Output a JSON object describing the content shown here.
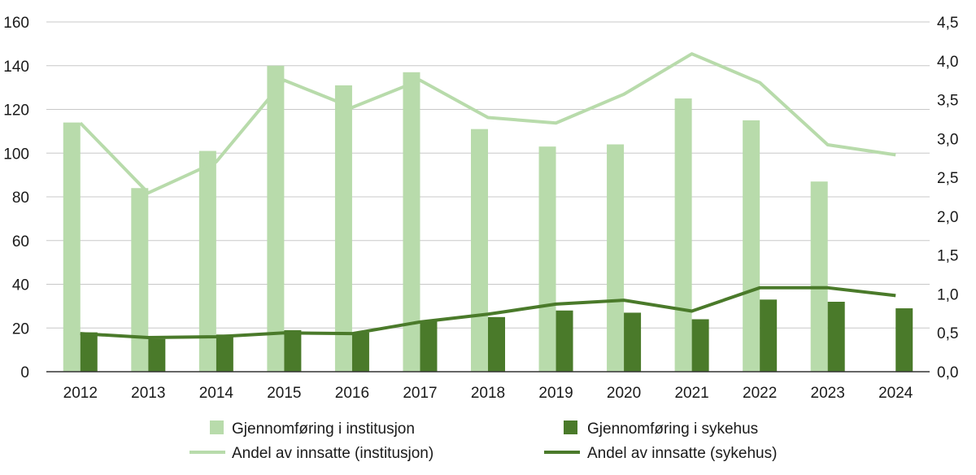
{
  "chart_data": {
    "type": "bar",
    "title": "",
    "xlabel": "",
    "ylabel": "",
    "categories": [
      "2012",
      "2013",
      "2014",
      "2015",
      "2016",
      "2017",
      "2018",
      "2019",
      "2020",
      "2021",
      "2022",
      "2023",
      "2024"
    ],
    "ylim": [
      0,
      160
    ],
    "y2lim": [
      0,
      4.5
    ],
    "yticks": [
      "0",
      "20",
      "40",
      "60",
      "80",
      "100",
      "120",
      "140",
      "160"
    ],
    "y2ticks": [
      "0,0",
      "0,5",
      "1,0",
      "1,5",
      "2,0",
      "2,5",
      "3,0",
      "3,5",
      "4,0",
      "4,5"
    ],
    "grid": true,
    "legend_position": "bottom",
    "colors": {
      "light": "#b8dbab",
      "dark": "#4a7a2a",
      "grid": "#c8c8c8",
      "axis": "#333333"
    },
    "series": [
      {
        "name": "Gjennomføring i institusjon",
        "kind": "bar",
        "axis": "left",
        "values": [
          114,
          84,
          101,
          140,
          131,
          137,
          111,
          103,
          104,
          125,
          115,
          87,
          null
        ]
      },
      {
        "name": "Gjennomføring i sykehus",
        "kind": "bar",
        "axis": "left",
        "values": [
          18,
          15,
          17,
          19,
          18,
          23,
          25,
          28,
          27,
          24,
          33,
          32,
          29
        ]
      },
      {
        "name": "Andel av innsatte (institusjon)",
        "kind": "line",
        "axis": "right",
        "values": [
          3.2,
          2.3,
          2.7,
          3.75,
          3.4,
          3.75,
          3.27,
          3.2,
          3.57,
          4.09,
          3.72,
          2.92,
          2.79
        ]
      },
      {
        "name": "Andel av innsatte (sykehus)",
        "kind": "line",
        "axis": "right",
        "values": [
          0.49,
          0.44,
          0.45,
          0.5,
          0.49,
          0.64,
          0.74,
          0.87,
          0.92,
          0.78,
          1.08,
          1.08,
          0.98
        ]
      }
    ]
  }
}
